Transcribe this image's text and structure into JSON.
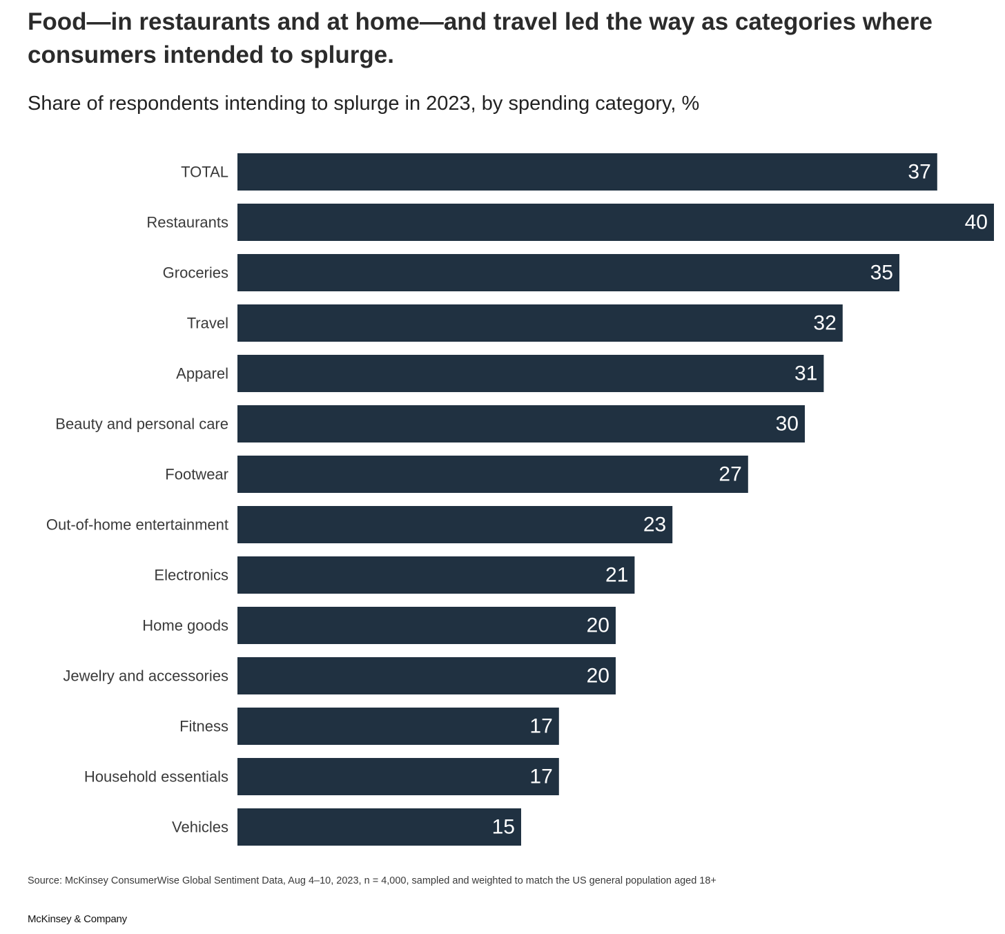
{
  "chart_data": {
    "type": "bar",
    "orientation": "horizontal",
    "title": "Food—in restaurants and at home—and travel led the way as categories where consumers intended to splurge.",
    "subtitle": "Share of respondents intending to splurge in 2023, by spending category, %",
    "categories": [
      "TOTAL",
      "Restaurants",
      "Groceries",
      "Travel",
      "Apparel",
      "Beauty and personal care",
      "Footwear",
      "Out-of-home entertainment",
      "Electronics",
      "Home goods",
      "Jewelry and accessories",
      "Fitness",
      "Household essentials",
      "Vehicles"
    ],
    "values": [
      37,
      40,
      35,
      32,
      31,
      30,
      27,
      23,
      21,
      20,
      20,
      17,
      17,
      15
    ],
    "data_labels": [
      "37",
      "40",
      "35",
      "32",
      "31",
      "30",
      "27",
      "23",
      "21",
      "20",
      "20",
      "17",
      "17",
      "15"
    ],
    "xlim": [
      0,
      40
    ],
    "grid": false,
    "legend": "none",
    "bar_color": "#203141",
    "label_color": "#ffffff"
  },
  "footer": {
    "source": "Source: McKinsey ConsumerWise Global Sentiment Data, Aug 4–10, 2023, n = 4,000, sampled and weighted to match the US general population aged 18+",
    "brand": "McKinsey & Company"
  }
}
